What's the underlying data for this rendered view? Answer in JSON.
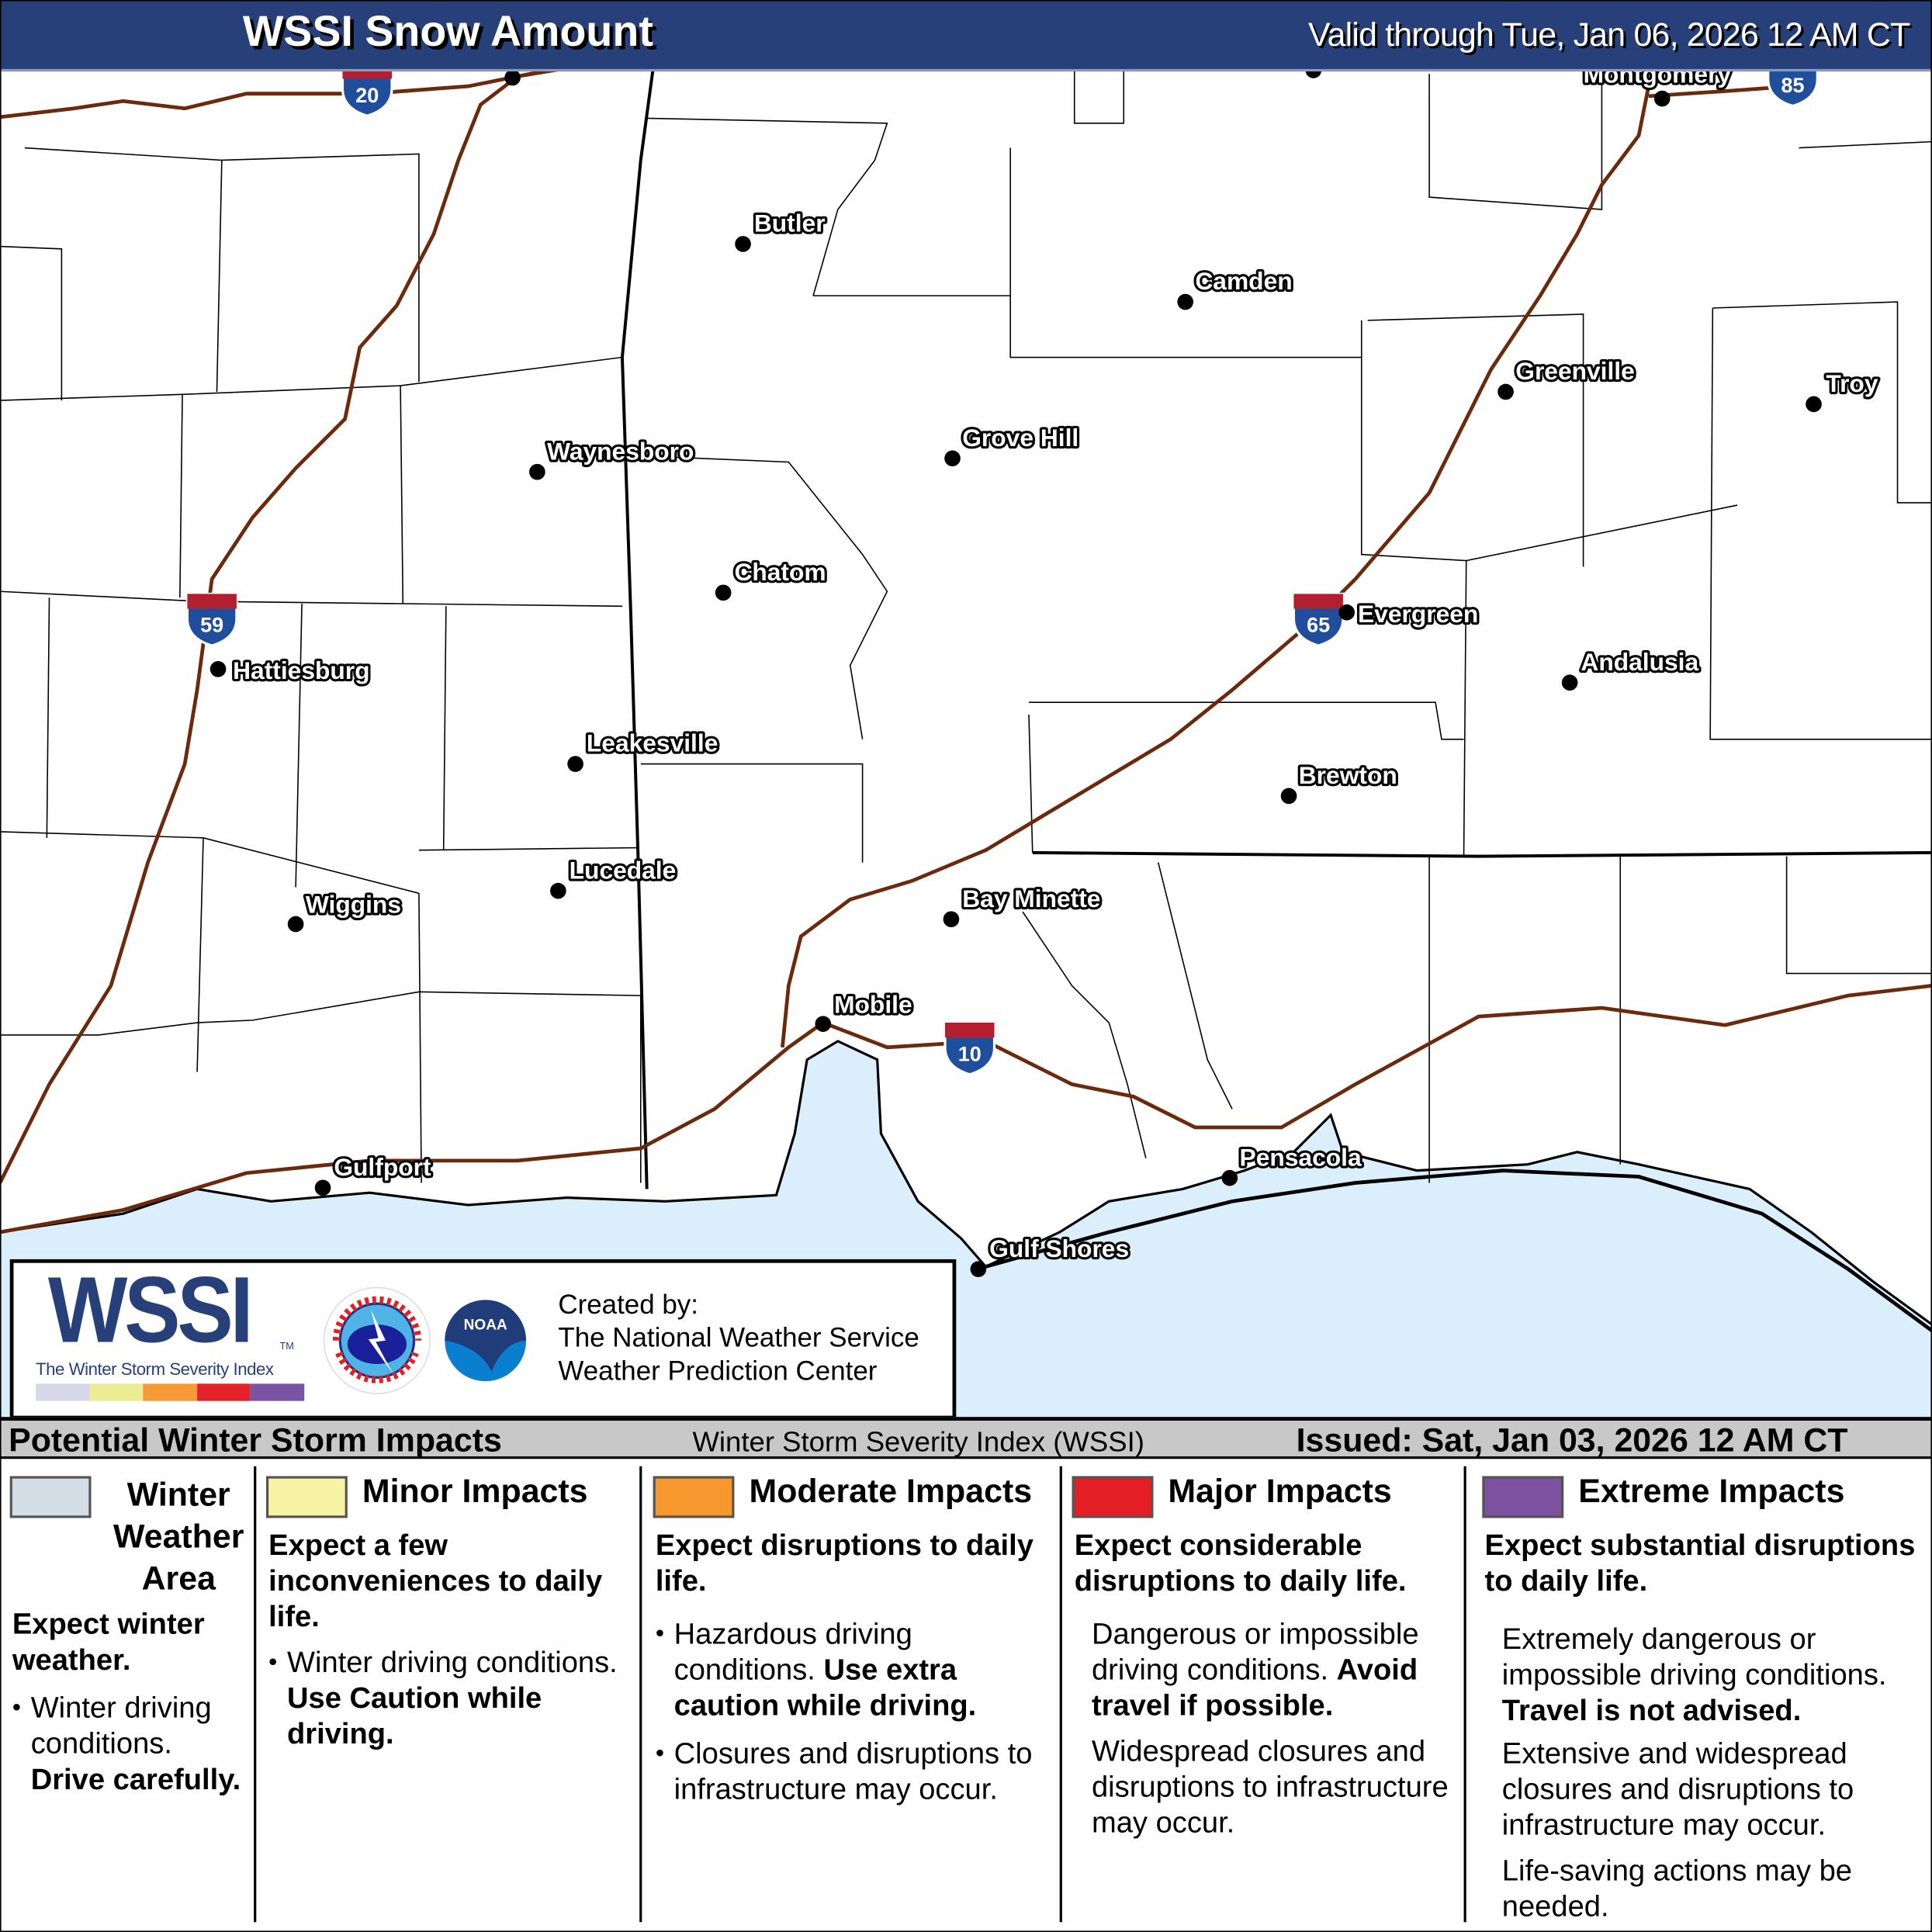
{
  "header": {
    "title": "WSSI Snow Amount",
    "valid": "Valid through Tue, Jan 06, 2026 12 AM CT"
  },
  "map": {
    "cities": [
      "Butler",
      "Camden",
      "Greenville",
      "Troy",
      "Grove Hill",
      "Waynesboro",
      "Chatom",
      "Evergreen",
      "Hattiesburg",
      "Andalusia",
      "Leakesville",
      "Brewton",
      "Lucedale",
      "Bay Minette",
      "Wiggins",
      "Mobile",
      "Gulfport",
      "Pensacola",
      "Gulf Shores",
      "Montgomery"
    ],
    "interstates": [
      "20",
      "59",
      "65",
      "10",
      "85"
    ],
    "colors": {
      "water": "#dbeefc",
      "road": "#6b2a0c",
      "shield_red": "#b2202f",
      "shield_blue": "#1f4f9c"
    }
  },
  "logo": {
    "wssi": "WSSI",
    "tm": "TM",
    "subtitle": "The Winter Storm Severity Index",
    "nws_icon": "nws-logo",
    "noaa_icon": "noaa-logo",
    "created_by": [
      "Created by:",
      "The National Weather Service",
      "Weather Prediction Center"
    ],
    "bar_colors": [
      "#d9d8e8",
      "#ecec94",
      "#f79a35",
      "#e42229",
      "#7a54a3"
    ]
  },
  "legend": {
    "left": "Potential Winter Storm Impacts",
    "middle": "Winter Storm Severity Index (WSSI)",
    "right": "Issued: Sat, Jan 03, 2026 12 AM CT",
    "columns": [
      {
        "title": "Winter Weather Area",
        "color": "#d2dde6",
        "lead": "Expect winter weather.",
        "p1": "Winter driving conditions.",
        "p1b": "Drive carefully."
      },
      {
        "title": "Minor Impacts",
        "color": "#f8f4a6",
        "lead": "Expect a few inconveniences to daily life.",
        "p1": "Winter driving conditions.",
        "p1b": "Use Caution while driving."
      },
      {
        "title": "Moderate Impacts",
        "color": "#f7982f",
        "lead": "Expect disruptions to daily life.",
        "p1": "Hazardous driving conditions.",
        "p1b": "Use extra caution while driving.",
        "p2": "Closures and disruptions to infrastructure may occur."
      },
      {
        "title": "Major Impacts",
        "color": "#e31e25",
        "lead": "Expect considerable disruptions to daily life.",
        "p1": "Dangerous or impossible driving conditions.",
        "p1b": "Avoid travel if possible.",
        "p2": "Widespread closures and disruptions to infrastructure may occur."
      },
      {
        "title": "Extreme Impacts",
        "color": "#7b51a0",
        "lead": "Expect substantial disruptions to daily life.",
        "p1": "Extremely dangerous or impossible driving conditions.",
        "p1b": "Travel is not advised.",
        "p2": "Extensive and widespread closures and disruptions to infrastructure may occur.",
        "p3": "Life-saving actions may be needed."
      }
    ]
  }
}
